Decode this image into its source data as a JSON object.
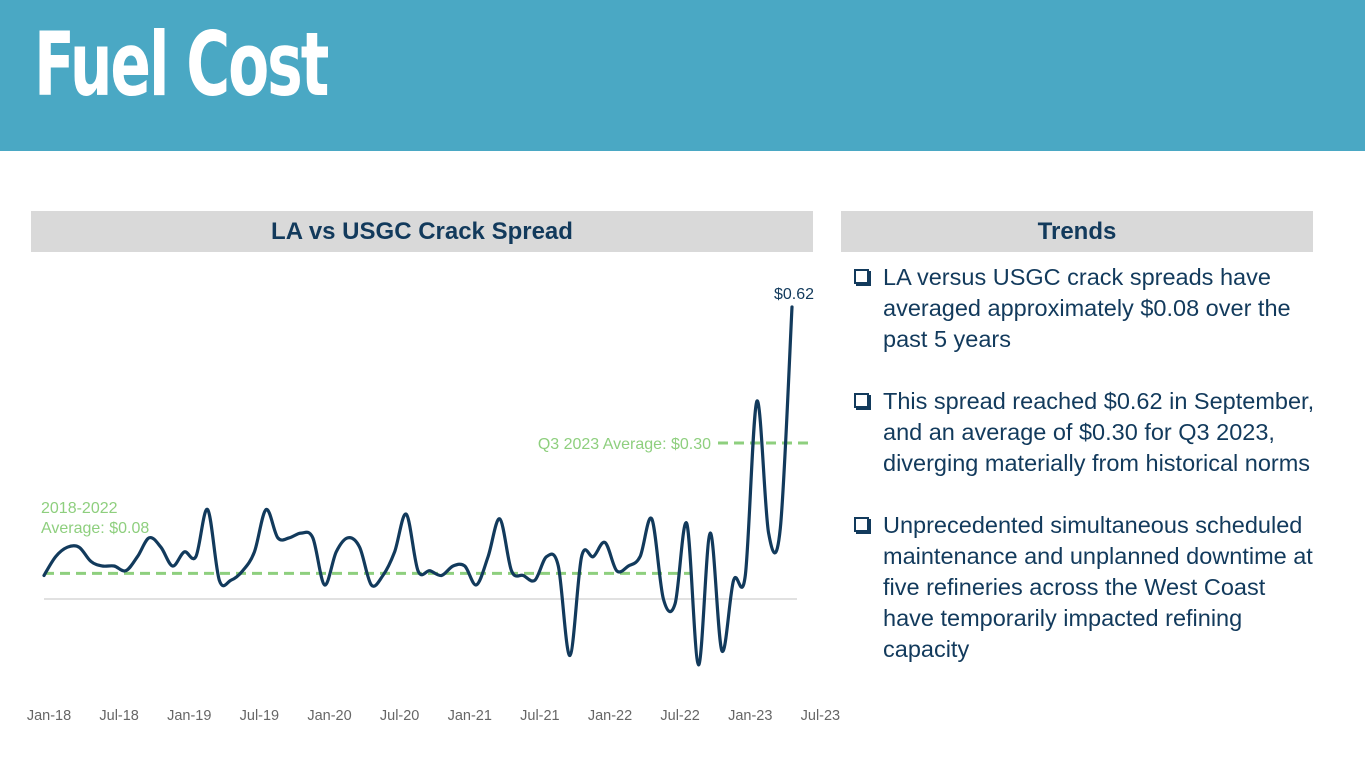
{
  "page": {
    "title": "Fuel Cost",
    "header_color": "#4aa8c4",
    "accent_color": "#123a5c",
    "reference_color": "#8ecf7e"
  },
  "chart_panel": {
    "title": "LA vs USGC Crack Spread"
  },
  "trends_panel": {
    "title": "Trends",
    "items": [
      {
        "text": "LA versus USGC crack spreads have averaged approximately $0.08 over the past 5 years"
      },
      {
        "text": "This spread reached $0.62 in September, and an average of $0.30 for Q3 2023, diverging materially from historical norms"
      },
      {
        "text": "Unprecedented simultaneous scheduled maintenance and unplanned downtime at five refineries across the West Coast have temporarily impacted refining capacity"
      }
    ]
  },
  "chart_data": {
    "type": "line",
    "title": "LA vs USGC Crack Spread",
    "xlabel": "",
    "ylabel": "",
    "ylim": [
      -0.2,
      0.7
    ],
    "x_start": "Jan-18",
    "interval": "month",
    "tick_labels": [
      "Jan-18",
      "Jul-18",
      "Jan-19",
      "Jul-19",
      "Jan-20",
      "Jul-20",
      "Jan-21",
      "Jul-21",
      "Jan-22",
      "Jul-22",
      "Jan-23",
      "Jul-23"
    ],
    "series": [
      {
        "name": "LA vs USGC Crack Spread",
        "values": [
          0.05,
          0.09,
          0.11,
          0.11,
          0.08,
          0.07,
          0.07,
          0.06,
          0.09,
          0.13,
          0.11,
          0.07,
          0.1,
          0.09,
          0.19,
          0.04,
          0.04,
          0.06,
          0.1,
          0.19,
          0.13,
          0.13,
          0.14,
          0.13,
          0.03,
          0.1,
          0.13,
          0.11,
          0.03,
          0.05,
          0.1,
          0.18,
          0.06,
          0.06,
          0.05,
          0.07,
          0.07,
          0.03,
          0.09,
          0.17,
          0.06,
          0.05,
          0.04,
          0.09,
          0.07,
          -0.12,
          0.09,
          0.09,
          0.12,
          0.06,
          0.07,
          0.09,
          0.17,
          0.0,
          -0.01,
          0.16,
          -0.14,
          0.14,
          -0.11,
          0.04,
          0.05,
          0.42,
          0.14,
          0.15,
          0.62
        ]
      }
    ],
    "reference_lines": [
      {
        "label": "2018-2022 Average: $0.08",
        "label_lines": [
          "2018-2022",
          "Average: $0.08"
        ],
        "value": 0.08
      },
      {
        "label": "Q3 2023 Average: $0.30",
        "value": 0.3
      }
    ],
    "annotations": [
      {
        "text": "$0.62",
        "value": 0.62
      }
    ],
    "grid": false,
    "legend": "none"
  }
}
